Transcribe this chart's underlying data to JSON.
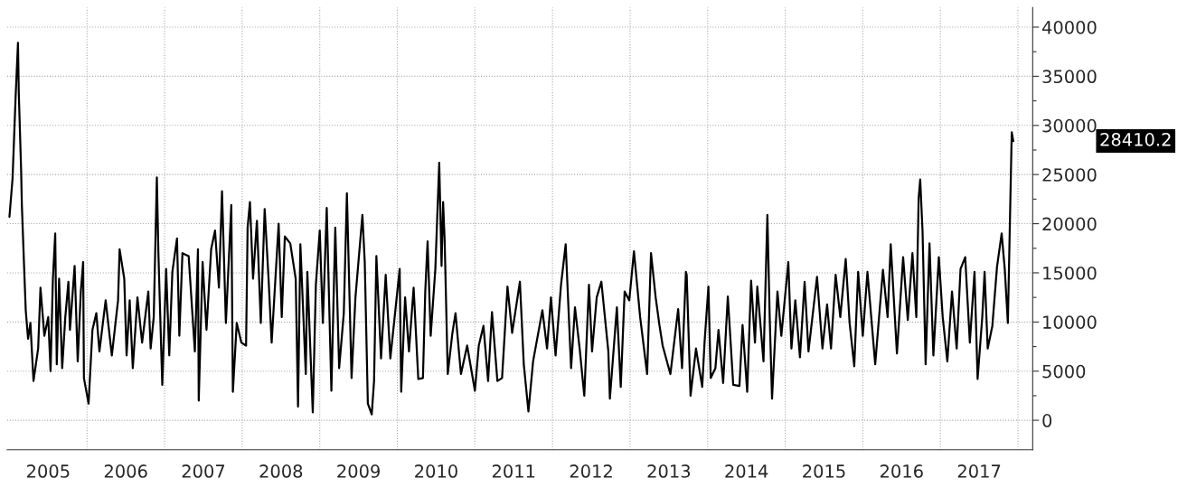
{
  "chart_data": {
    "type": "line",
    "x": [
      2005.0,
      2005.04,
      2005.06,
      2005.08,
      2005.11,
      2005.12,
      2005.15,
      2005.16,
      2005.19,
      2005.21,
      2005.24,
      2005.27,
      2005.31,
      2005.37,
      2005.4,
      2005.45,
      2005.5,
      2005.53,
      2005.56,
      2005.59,
      2005.61,
      2005.64,
      2005.68,
      2005.72,
      2005.76,
      2005.78,
      2005.84,
      2005.88,
      2005.92,
      2005.95,
      2005.96,
      2006.02,
      2006.07,
      2006.12,
      2006.16,
      2006.24,
      2006.32,
      2006.4,
      2006.42,
      2006.48,
      2006.51,
      2006.55,
      2006.59,
      2006.65,
      2006.71,
      2006.79,
      2006.82,
      2006.86,
      2006.9,
      2006.92,
      2006.97,
      2007.02,
      2007.06,
      2007.1,
      2007.16,
      2007.19,
      2007.23,
      2007.31,
      2007.39,
      2007.43,
      2007.44,
      2007.49,
      2007.54,
      2007.6,
      2007.65,
      2007.7,
      2007.74,
      2007.79,
      2007.86,
      2007.88,
      2007.93,
      2007.99,
      2008.05,
      2008.07,
      2008.1,
      2008.14,
      2008.19,
      2008.24,
      2008.29,
      2008.34,
      2008.38,
      2008.47,
      2008.51,
      2008.55,
      2008.62,
      2008.69,
      2008.72,
      2008.75,
      2008.82,
      2008.84,
      2008.91,
      2008.95,
      2009.0,
      2009.04,
      2009.09,
      2009.15,
      2009.2,
      2009.25,
      2009.31,
      2009.35,
      2009.41,
      2009.46,
      2009.55,
      2009.58,
      2009.62,
      2009.67,
      2009.7,
      2009.73,
      2009.79,
      2009.85,
      2009.91,
      2010.03,
      2010.05,
      2010.1,
      2010.15,
      2010.21,
      2010.27,
      2010.33,
      2010.36,
      2010.39,
      2010.43,
      2010.49,
      2010.54,
      2010.57,
      2010.59,
      2010.61,
      2010.65,
      2010.71,
      2010.75,
      2010.82,
      2010.9,
      2011.0,
      2011.05,
      2011.11,
      2011.17,
      2011.22,
      2011.29,
      2011.35,
      2011.42,
      2011.48,
      2011.58,
      2011.63,
      2011.69,
      2011.75,
      2011.87,
      2011.93,
      2011.98,
      2012.04,
      2012.11,
      2012.17,
      2012.24,
      2012.29,
      2012.35,
      2012.41,
      2012.47,
      2012.51,
      2012.57,
      2012.63,
      2012.72,
      2012.74,
      2012.83,
      2012.88,
      2012.93,
      2012.99,
      2013.05,
      2013.13,
      2013.22,
      2013.27,
      2013.33,
      2013.38,
      2013.42,
      2013.52,
      2013.62,
      2013.67,
      2013.72,
      2013.73,
      2013.78,
      2013.85,
      2013.93,
      2013.96,
      2014.01,
      2014.04,
      2014.1,
      2014.14,
      2014.2,
      2014.26,
      2014.33,
      2014.41,
      2014.45,
      2014.51,
      2014.56,
      2014.61,
      2014.64,
      2014.72,
      2014.77,
      2014.8,
      2014.83,
      2014.9,
      2014.95,
      2015.04,
      2015.08,
      2015.13,
      2015.19,
      2015.25,
      2015.3,
      2015.41,
      2015.48,
      2015.54,
      2015.59,
      2015.65,
      2015.71,
      2015.78,
      2015.83,
      2015.89,
      2015.94,
      2016.0,
      2016.06,
      2016.16,
      2016.22,
      2016.26,
      2016.32,
      2016.36,
      2016.44,
      2016.52,
      2016.58,
      2016.64,
      2016.69,
      2016.72,
      2016.74,
      2016.77,
      2016.81,
      2016.86,
      2016.91,
      2016.98,
      2017.03,
      2017.09,
      2017.15,
      2017.21,
      2017.26,
      2017.32,
      2017.38,
      2017.44,
      2017.48,
      2017.54,
      2017.57,
      2017.61,
      2017.67,
      2017.73,
      2017.79,
      2017.83,
      2017.87,
      2017.9,
      2017.92,
      2017.94
    ],
    "series": [
      {
        "color": "#000000",
        "values": [
          20700,
          24600,
          28800,
          33000,
          38400,
          33400,
          25600,
          21900,
          15400,
          11200,
          8300,
          9900,
          4000,
          7300,
          13500,
          8600,
          10500,
          5000,
          14400,
          19000,
          5700,
          14400,
          5300,
          10500,
          14100,
          9200,
          15700,
          6000,
          13100,
          16100,
          4300,
          1700,
          9200,
          10900,
          7000,
          12200,
          6600,
          12200,
          17400,
          14400,
          6600,
          12200,
          5300,
          12500,
          7900,
          13100,
          7300,
          10500,
          24700,
          17000,
          3600,
          15400,
          6600,
          15100,
          18500,
          8600,
          17000,
          16700,
          7000,
          17400,
          2000,
          16100,
          9200,
          17400,
          19300,
          13500,
          23300,
          9900,
          21900,
          2900,
          9900,
          7900,
          7600,
          19600,
          22200,
          14400,
          20300,
          9900,
          21500,
          14400,
          7900,
          20000,
          10500,
          18700,
          18000,
          14400,
          1400,
          17900,
          4700,
          15100,
          800,
          13800,
          19300,
          9900,
          21600,
          3000,
          19600,
          5300,
          10900,
          23100,
          4300,
          12500,
          20900,
          16100,
          1700,
          600,
          4000,
          16700,
          6300,
          14800,
          6300,
          15400,
          2900,
          12500,
          7000,
          13500,
          4200,
          4300,
          13100,
          18200,
          8600,
          15400,
          26200,
          15700,
          22200,
          18300,
          4700,
          8900,
          10900,
          4700,
          7600,
          3000,
          7600,
          9600,
          4000,
          11000,
          4000,
          4300,
          13600,
          8900,
          14100,
          5700,
          900,
          6000,
          11200,
          7300,
          12500,
          6600,
          13800,
          17900,
          5300,
          11500,
          7300,
          2500,
          13800,
          7000,
          12500,
          14100,
          7000,
          2200,
          11500,
          3400,
          13100,
          12200,
          17200,
          10500,
          4700,
          17000,
          12500,
          9600,
          7600,
          4700,
          11300,
          5300,
          15100,
          14800,
          2500,
          7300,
          3400,
          7900,
          13600,
          4300,
          5300,
          9200,
          3800,
          12600,
          3600,
          3500,
          9700,
          2900,
          14200,
          7900,
          13600,
          6000,
          20900,
          10500,
          2200,
          13100,
          8600,
          16100,
          7300,
          12200,
          6400,
          14100,
          7000,
          14600,
          7300,
          11800,
          7300,
          14800,
          10500,
          16400,
          9900,
          5500,
          15100,
          8600,
          15100,
          5700,
          11500,
          15300,
          10500,
          17900,
          6800,
          16600,
          10200,
          17000,
          10500,
          22600,
          24500,
          19300,
          5700,
          18000,
          6600,
          16600,
          10500,
          6000,
          13100,
          7300,
          15400,
          16600,
          7900,
          15100,
          4200,
          10500,
          15100,
          7300,
          9600,
          15600,
          19000,
          15400,
          9900,
          21600,
          29300,
          28410.2
        ]
      }
    ],
    "xlim": [
      2004.97,
      2018.19
    ],
    "xticks": [
      {
        "value": 2005.5,
        "label": "2005"
      },
      {
        "value": 2006,
        "label": null
      },
      {
        "value": 2006.5,
        "label": "2006"
      },
      {
        "value": 2007,
        "label": null
      },
      {
        "value": 2007.5,
        "label": "2007"
      },
      {
        "value": 2008,
        "label": null
      },
      {
        "value": 2008.5,
        "label": "2008"
      },
      {
        "value": 2009,
        "label": null
      },
      {
        "value": 2009.5,
        "label": "2009"
      },
      {
        "value": 2010,
        "label": null
      },
      {
        "value": 2010.5,
        "label": "2010"
      },
      {
        "value": 2011,
        "label": null
      },
      {
        "value": 2011.5,
        "label": "2011"
      },
      {
        "value": 2012,
        "label": null
      },
      {
        "value": 2012.5,
        "label": "2012"
      },
      {
        "value": 2013,
        "label": null
      },
      {
        "value": 2013.5,
        "label": "2013"
      },
      {
        "value": 2014,
        "label": null
      },
      {
        "value": 2014.5,
        "label": "2014"
      },
      {
        "value": 2015,
        "label": null
      },
      {
        "value": 2015.5,
        "label": "2015"
      },
      {
        "value": 2016,
        "label": null
      },
      {
        "value": 2016.5,
        "label": "2016"
      },
      {
        "value": 2017,
        "label": null
      },
      {
        "value": 2017.5,
        "label": "2017"
      },
      {
        "value": 2018,
        "label": null
      }
    ],
    "ylim": [
      -3000,
      42000
    ],
    "yticks": [
      0,
      {
        "value": 2500,
        "label": null
      },
      5000,
      {
        "value": 7500,
        "label": null
      },
      10000,
      {
        "value": 12500,
        "label": null
      },
      15000,
      {
        "value": 17500,
        "label": null
      },
      20000,
      {
        "value": 22500,
        "label": null
      },
      25000,
      {
        "value": 27500,
        "label": null
      },
      30000,
      {
        "value": 32500,
        "label": null
      },
      35000,
      {
        "value": 37500,
        "label": null
      },
      40000
    ],
    "grid": true,
    "marker": "none",
    "line_style": "solid",
    "legend": false,
    "annotations": [
      "28410.2"
    ]
  }
}
